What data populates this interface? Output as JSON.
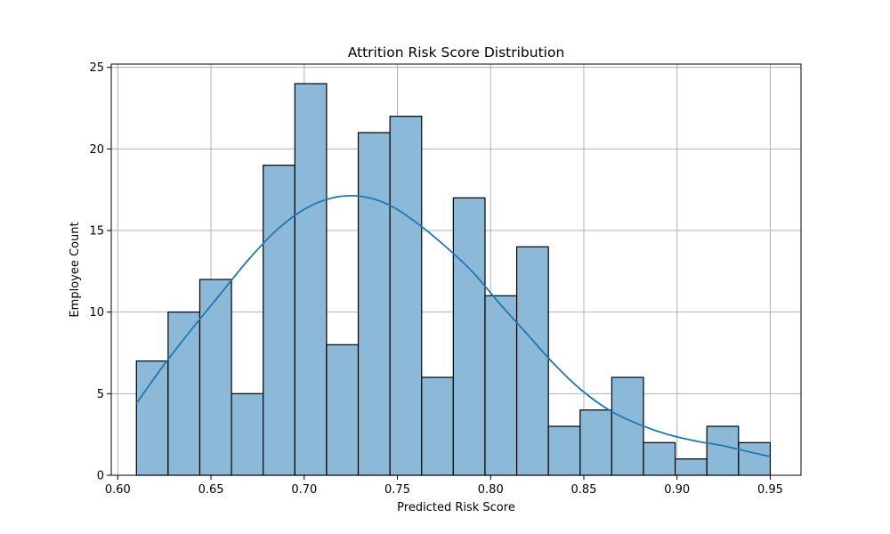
{
  "chart_data": {
    "type": "bar",
    "title": "Attrition Risk Score Distribution",
    "xlabel": "Predicted Risk Score",
    "ylabel": "Employee Count",
    "xlim": [
      0.5965,
      0.9665
    ],
    "ylim": [
      0,
      25.2
    ],
    "xticks": [
      0.6,
      0.65,
      0.7,
      0.75,
      0.8,
      0.85,
      0.9,
      0.95
    ],
    "xtick_labels": [
      "0.60",
      "0.65",
      "0.70",
      "0.75",
      "0.80",
      "0.85",
      "0.90",
      "0.95"
    ],
    "yticks": [
      0,
      5,
      10,
      15,
      20,
      25
    ],
    "ytick_labels": [
      "0",
      "5",
      "10",
      "15",
      "20",
      "25"
    ],
    "grid": true,
    "bin_edges": [
      0.61,
      0.627,
      0.644,
      0.661,
      0.678,
      0.695,
      0.712,
      0.729,
      0.746,
      0.763,
      0.78,
      0.797,
      0.814,
      0.831,
      0.848,
      0.865,
      0.882,
      0.899,
      0.916,
      0.933,
      0.95
    ],
    "counts": [
      7,
      10,
      12,
      5,
      19,
      24,
      8,
      21,
      22,
      6,
      17,
      11,
      14,
      3,
      4,
      6,
      2,
      1,
      3,
      2
    ],
    "kde": {
      "x": [
        0.61,
        0.625,
        0.64,
        0.655,
        0.67,
        0.685,
        0.7,
        0.715,
        0.73,
        0.745,
        0.76,
        0.775,
        0.79,
        0.805,
        0.82,
        0.835,
        0.85,
        0.865,
        0.88,
        0.895,
        0.91,
        0.925,
        0.94,
        0.95
      ],
      "y": [
        4.4,
        6.8,
        9.0,
        11.1,
        13.2,
        15.0,
        16.3,
        17.0,
        17.1,
        16.6,
        15.5,
        14.1,
        12.5,
        10.5,
        8.6,
        6.7,
        5.1,
        3.9,
        3.1,
        2.5,
        2.1,
        1.8,
        1.4,
        1.15
      ]
    },
    "colors": {
      "bar_fill": "#8db9d9",
      "bar_edge": "#000000",
      "kde_line": "#1f77b4",
      "grid": "#b0b0b0"
    }
  }
}
